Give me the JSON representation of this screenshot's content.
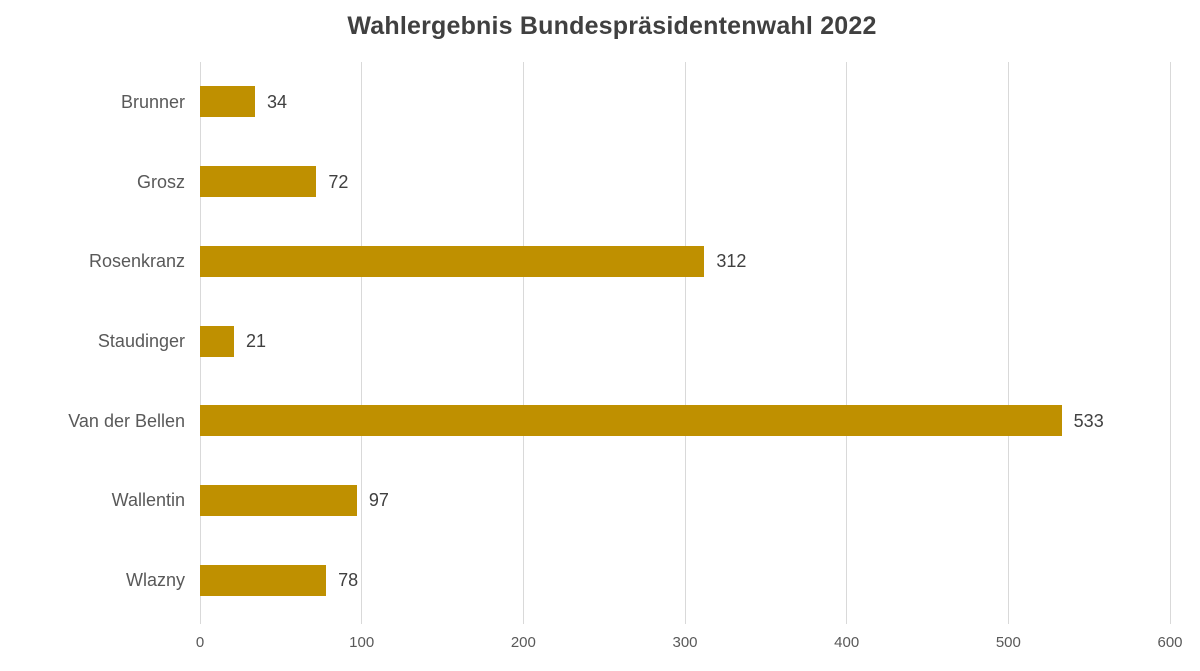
{
  "chart_data": {
    "type": "bar",
    "orientation": "horizontal",
    "title": "Wahlergebnis Bundespräsidentenwahl 2022",
    "categories": [
      "Brunner",
      "Grosz",
      "Rosenkranz",
      "Staudinger",
      "Van der Bellen",
      "Wallentin",
      "Wlazny"
    ],
    "values": [
      34,
      72,
      312,
      21,
      533,
      97,
      78
    ],
    "xlabel": "",
    "ylabel": "",
    "xlim": [
      0,
      600
    ],
    "x_ticks": [
      0,
      100,
      200,
      300,
      400,
      500,
      600
    ],
    "grid": true,
    "legend": false,
    "data_labels": true,
    "colors": {
      "bar": "#BF9000",
      "title": "#404040",
      "category_label": "#595959",
      "value_label": "#404040",
      "tick_label": "#595959",
      "gridline": "#D9D9D9",
      "background": "#FFFFFF"
    }
  }
}
